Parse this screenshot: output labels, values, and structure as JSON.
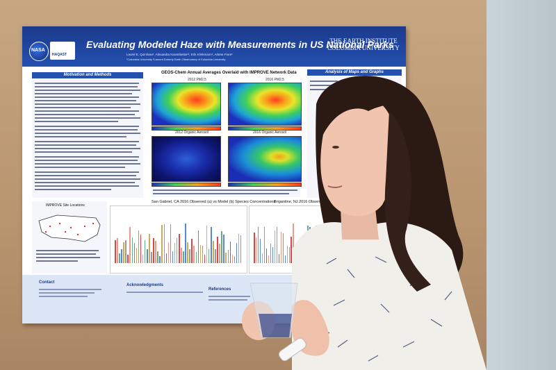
{
  "poster": {
    "title": "Evaluating Modeled Haze with Measurements in US National Parks",
    "authors": "Laurel E. Quinlivan¹, Alexandra Karambelas¹², Erik Klinkmann¹, Arlene Fiore¹",
    "affiliations": "¹Columbia University  ²Lamont Doherty Earth Observatory of Columbia University",
    "institution": "THE EARTH INSTITUTE COLUMBIA UNIVERSITY",
    "logo_nasa": "NASA",
    "logo_haqast": "HAQAST",
    "sections": {
      "motivation": "Motivation and Methods",
      "maps_title": "GEOS-Chem Annual Averages Overlaid with IMPROVE Network Data",
      "analysis": "Analysis of Maps and Graphs",
      "site_locations": "IMPROVE Site Locations",
      "chart_left_title": "San Gabriel, CA 2016 Observed (a) vs Model (b) Species Concentrations",
      "chart_right_title": "Brigantine, NJ 2016 Observed (a)",
      "contact": "Contact",
      "acknowledgments": "Acknowledgments",
      "references": "References"
    },
    "map_labels": [
      "2012 PM2.5",
      "2016 PM2.5",
      "2012 Organic Aerosol",
      "2016 Organic Aerosol"
    ]
  },
  "colors": {
    "banner": "#1b3a8c",
    "section_head": "#2450b0",
    "wall": "#c7a682"
  },
  "scene": {
    "subject": "woman holding a plastic cup presenting next to a research poster"
  }
}
